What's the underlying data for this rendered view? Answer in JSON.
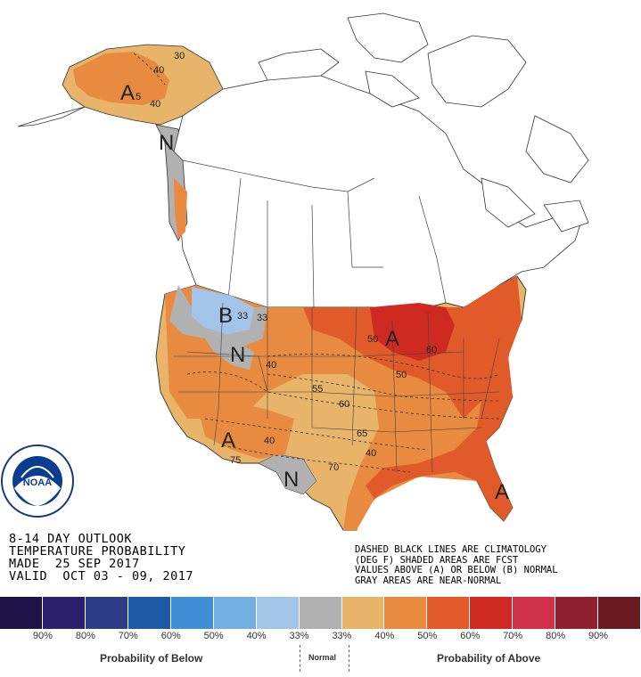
{
  "header": {
    "line1": "8-14 DAY OUTLOOK",
    "line2": "TEMPERATURE PROBABILITY",
    "line3": "MADE  25 SEP 2017",
    "line4": "VALID  OCT 03 - 09, 2017"
  },
  "notes": {
    "line1": "DASHED BLACK LINES ARE CLIMATOLOGY",
    "line2": "(DEG F) SHADED AREAS ARE FCST",
    "line3": "VALUES ABOVE (A) OR BELOW (B) NORMAL",
    "line4": "GRAY AREAS ARE NEAR-NORMAL"
  },
  "map_labels": {
    "alaska_a": "A",
    "alaska_n": "N",
    "northwest_b": "B",
    "northwest_n": "N",
    "southwest_a": "A",
    "texas_n": "N",
    "great_lakes_a": "A",
    "florida_a": "A",
    "c30": "30",
    "c40a": "40",
    "c40b": "40",
    "c5": "5",
    "c33a": "33",
    "c33b": "33",
    "c40c": "40",
    "c40d": "40",
    "c40e": "40",
    "c50a": "50",
    "c50b": "50",
    "c55": "55",
    "c60a": "60",
    "c60b": "60",
    "c65": "65",
    "c70": "70",
    "c75": "75"
  },
  "logo": {
    "text": "NOAA",
    "ring_text": "NATIONAL OCEANIC AND ATMOSPHERIC ADMINISTRATION · U.S. DEPARTMENT OF COMMERCE"
  },
  "legend": {
    "colors": [
      "#1d1348",
      "#2b1f6e",
      "#2c3c86",
      "#1c5aa5",
      "#3e8fd6",
      "#72afe3",
      "#a2c4e8",
      "#b1b1b1",
      "#e8b46a",
      "#e88a40",
      "#e05a2a",
      "#cf2a22",
      "#d0314a",
      "#8e2030",
      "#6a1a20"
    ],
    "labels": [
      "90%",
      "80%",
      "70%",
      "60%",
      "50%",
      "40%",
      "33%",
      "33%",
      "40%",
      "50%",
      "60%",
      "70%",
      "80%",
      "90%"
    ],
    "below_caption": "Probability of Below",
    "normal_caption": "Normal",
    "above_caption": "Probability of Above"
  }
}
